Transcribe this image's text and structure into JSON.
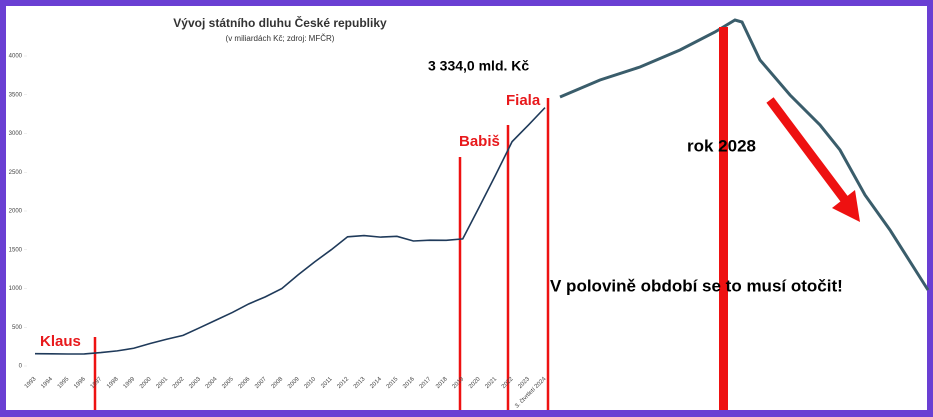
{
  "chart_data": {
    "type": "line",
    "title": "Vývoj státního dluhu České republiky",
    "subtitle": "(v miliardách Kč; zdroj: MFČR)",
    "categories": [
      "1993",
      "1994",
      "1995",
      "1996",
      "1997",
      "1998",
      "1999",
      "2000",
      "2001",
      "2002",
      "2003",
      "2004",
      "2005",
      "2006",
      "2007",
      "2008",
      "2009",
      "2010",
      "2011",
      "2012",
      "2013",
      "2014",
      "2015",
      "2016",
      "2017",
      "2018",
      "2019",
      "2020",
      "2021",
      "2022",
      "2023",
      "3. čtvrtletí 2024"
    ],
    "series": [
      {
        "name": "Státní dluh",
        "color": "#1f3a5a",
        "values": [
          159,
          157,
          155,
          156,
          173,
          195,
          229,
          290,
          345,
          395,
          493,
          592,
          691,
          802,
          892,
          999,
          1178,
          1344,
          1499,
          1667,
          1683,
          1663,
          1673,
          1613,
          1624,
          1622,
          1640,
          2050,
          2466,
          2895,
          3111,
          3334
        ]
      }
    ],
    "ylim": [
      0,
      4000
    ],
    "yticks": [
      0,
      500,
      1000,
      1500,
      2000,
      2500,
      3000,
      3500,
      4000
    ],
    "annotations": {
      "last_value": "3 334,0 mld. Kč",
      "klaus": "Klaus",
      "babis": "Babiš",
      "fiala": "Fiala",
      "year": "rok 2028",
      "slogan": "V polovině období se to musí otočit!"
    }
  }
}
